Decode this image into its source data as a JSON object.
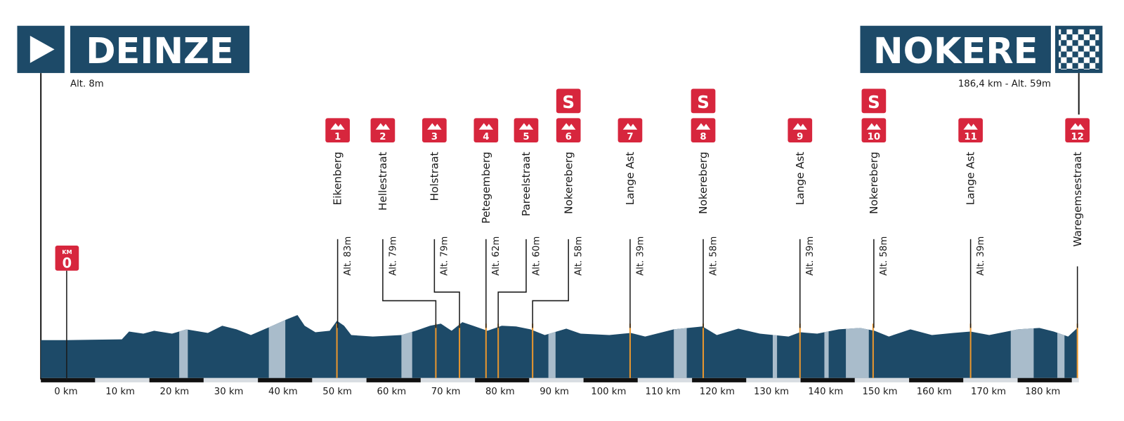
{
  "start": {
    "name": "DEINZE",
    "altitude": "Alt. 8m",
    "km_label": "KM",
    "km_value": "0"
  },
  "finish": {
    "name": "NOKERE",
    "info": "186,4 km - Alt. 59m"
  },
  "climbs": [
    {
      "number": "1",
      "name": "Eikenberg",
      "altitude": "Alt. 83m"
    },
    {
      "number": "2",
      "name": "Hellestraat",
      "altitude": "Alt. 79m"
    },
    {
      "number": "3",
      "name": "Holstraat",
      "altitude": "Alt. 79m"
    },
    {
      "number": "4",
      "name": "Petegemberg",
      "altitude": "Alt. 62m"
    },
    {
      "number": "5",
      "name": "Pareelstraat",
      "altitude": "Alt. 60m"
    },
    {
      "number": "6",
      "name": "Nokereberg",
      "altitude": "Alt. 58m",
      "sprint": "S"
    },
    {
      "number": "7",
      "name": "Lange Ast",
      "altitude": "Alt. 39m"
    },
    {
      "number": "8",
      "name": "Nokereberg",
      "altitude": "Alt. 58m",
      "sprint": "S"
    },
    {
      "number": "9",
      "name": "Lange Ast",
      "altitude": "Alt. 39m"
    },
    {
      "number": "10",
      "name": "Nokereberg",
      "altitude": "Alt. 58m",
      "sprint": "S"
    },
    {
      "number": "11",
      "name": "Lange Ast",
      "altitude": "Alt. 39m"
    },
    {
      "number": "12",
      "name": "Waregemsestraat"
    }
  ],
  "axis_labels": [
    "0 km",
    "10 km",
    "20 km",
    "30 km",
    "40 km",
    "50 km",
    "60 km",
    "70 km",
    "80 km",
    "90 km",
    "100 km",
    "110 km",
    "120 km",
    "130 km",
    "140 km",
    "150 km",
    "160 km",
    "170 km",
    "180 km"
  ]
}
